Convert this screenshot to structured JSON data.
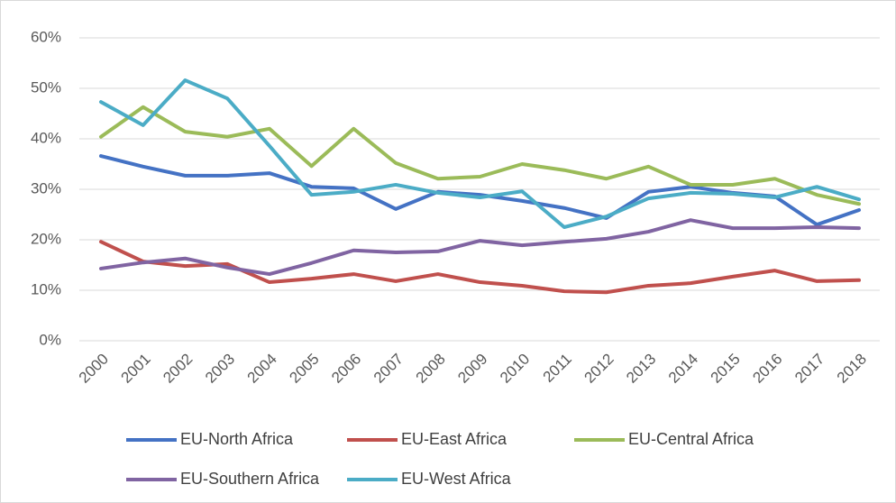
{
  "chart_data": {
    "type": "line",
    "categories": [
      "2000",
      "2001",
      "2002",
      "2003",
      "2004",
      "2005",
      "2006",
      "2007",
      "2008",
      "2009",
      "2010",
      "2011",
      "2012",
      "2013",
      "2014",
      "2015",
      "2016",
      "2017",
      "2018"
    ],
    "ylim": [
      0,
      60
    ],
    "yticks": [
      {
        "value": 0,
        "label": "0%"
      },
      {
        "value": 10,
        "label": "10%"
      },
      {
        "value": 20,
        "label": "20%"
      },
      {
        "value": 30,
        "label": "30%"
      },
      {
        "value": 40,
        "label": "40%"
      },
      {
        "value": 50,
        "label": "50%"
      },
      {
        "value": 60,
        "label": "60%"
      }
    ],
    "grid": true,
    "legend": "bottom",
    "series": [
      {
        "name": "EU-North Africa",
        "color": "#4472c4",
        "values": [
          36.6,
          34.5,
          32.7,
          32.7,
          33.2,
          30.5,
          30.2,
          26.1,
          29.5,
          28.9,
          27.7,
          26.3,
          24.3,
          29.5,
          30.5,
          29.3,
          28.6,
          23.0,
          25.9
        ]
      },
      {
        "name": "EU-East Africa",
        "color": "#c0504d",
        "values": [
          19.6,
          15.7,
          14.8,
          15.2,
          11.6,
          12.3,
          13.2,
          11.8,
          13.2,
          11.6,
          10.9,
          9.8,
          9.6,
          10.9,
          11.4,
          12.7,
          13.9,
          11.8,
          12.0
        ]
      },
      {
        "name": "EU-Central Africa",
        "color": "#9bbb59",
        "values": [
          40.4,
          46.3,
          41.4,
          40.4,
          42.0,
          34.6,
          42.0,
          35.2,
          32.1,
          32.5,
          35.0,
          33.8,
          32.1,
          34.5,
          30.9,
          30.9,
          32.1,
          28.9,
          27.1
        ]
      },
      {
        "name": "EU-Southern Africa",
        "color": "#8064a2",
        "values": [
          14.3,
          15.5,
          16.3,
          14.5,
          13.2,
          15.4,
          17.9,
          17.5,
          17.7,
          19.8,
          18.9,
          19.6,
          20.2,
          21.6,
          23.9,
          22.3,
          22.3,
          22.5,
          22.3
        ]
      },
      {
        "name": "EU-West Africa",
        "color": "#4bacc6",
        "values": [
          47.3,
          42.7,
          51.6,
          48.0,
          38.6,
          28.9,
          29.5,
          30.9,
          29.3,
          28.4,
          29.6,
          22.5,
          24.6,
          28.2,
          29.3,
          29.1,
          28.4,
          30.5,
          28.0
        ]
      }
    ]
  }
}
